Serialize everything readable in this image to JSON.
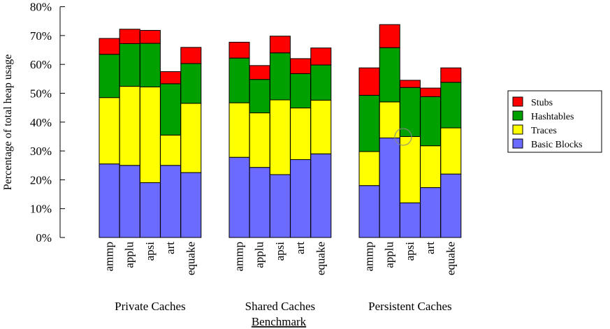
{
  "chart_data": {
    "type": "bar",
    "stacked": true,
    "ylabel": "Percentage of total heap usage",
    "xlabel": "Benchmark",
    "yunit": "%",
    "ylim": [
      0,
      80
    ],
    "yticks": [
      0,
      10,
      20,
      30,
      40,
      50,
      60,
      70,
      80
    ],
    "ytick_labels": [
      "0%",
      "10%",
      "20%",
      "30%",
      "40%",
      "50%",
      "60%",
      "70%",
      "80%"
    ],
    "legend_position": "right",
    "groups": [
      {
        "name": "Private Caches",
        "categories": [
          "ammp",
          "applu",
          "apsi",
          "art",
          "equake"
        ]
      },
      {
        "name": "Shared Caches",
        "categories": [
          "ammp",
          "applu",
          "apsi",
          "art",
          "equake"
        ]
      },
      {
        "name": "Persistent Caches",
        "categories": [
          "ammp",
          "applu",
          "apsi",
          "art",
          "equake"
        ]
      }
    ],
    "series": [
      {
        "name": "Basic Blocks",
        "color": "#6b6bff",
        "values": [
          25.5,
          25,
          19,
          25,
          22.5,
          27.8,
          24.3,
          21.8,
          27,
          29,
          18,
          34.5,
          12,
          17.3,
          22
        ]
      },
      {
        "name": "Traces",
        "color": "#ffff00",
        "values": [
          23,
          27.4,
          33.2,
          10.5,
          24,
          18.9,
          18.9,
          25.9,
          17.9,
          18.6,
          11.8,
          12.5,
          23,
          14.5,
          16
        ]
      },
      {
        "name": "Hashtables",
        "color": "#00a000",
        "values": [
          15,
          14.8,
          15.1,
          17.8,
          13.8,
          15.5,
          11.6,
          16.3,
          11.9,
          12.2,
          19.5,
          18.8,
          17,
          17,
          15.8
        ]
      },
      {
        "name": "Stubs",
        "color": "#ff0000",
        "values": [
          5.5,
          5,
          4.5,
          4.2,
          5.6,
          5.5,
          4.8,
          5.8,
          5.2,
          5.9,
          9.5,
          8,
          2.5,
          3,
          5
        ]
      }
    ],
    "legend_order": [
      "Stubs",
      "Hashtables",
      "Traces",
      "Basic Blocks"
    ]
  }
}
